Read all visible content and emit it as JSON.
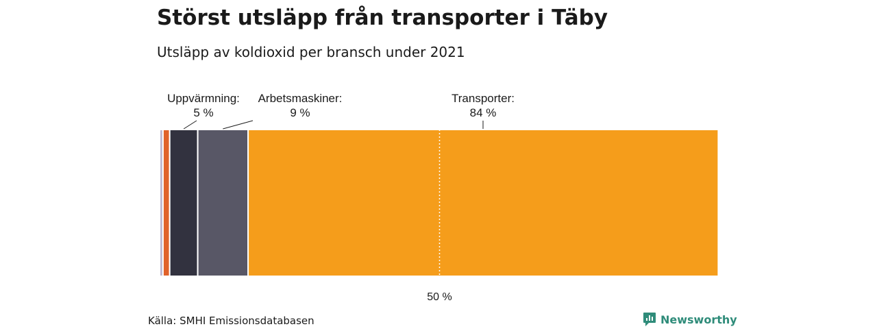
{
  "chart_data": {
    "type": "bar",
    "orientation": "horizontal-stacked-100",
    "title": "Störst utsläpp från transporter i Täby",
    "subtitle": "Utsläpp av koldioxid per bransch under 2021",
    "series": [
      {
        "value": 0.6,
        "color": "#bdb6cf"
      },
      {
        "value": 1.2,
        "color": "#e0622a"
      },
      {
        "value": 5,
        "name": "Uppvärmning:",
        "value_label": "5 %",
        "color": "#32323f"
      },
      {
        "value": 9,
        "name": "Arbetsmaskiner:",
        "value_label": "9 %",
        "color": "#585766"
      },
      {
        "value": 84,
        "name": "Transporter:",
        "value_label": "84 %",
        "color": "#f59d1b"
      }
    ],
    "reference_line": {
      "value": 50,
      "label": "50 %"
    },
    "xlim": [
      0,
      100
    ]
  },
  "footer": {
    "source": "Källa: SMHI Emissionsdatabasen",
    "brand": "Newsworthy",
    "brand_color": "#2f8c7a"
  }
}
